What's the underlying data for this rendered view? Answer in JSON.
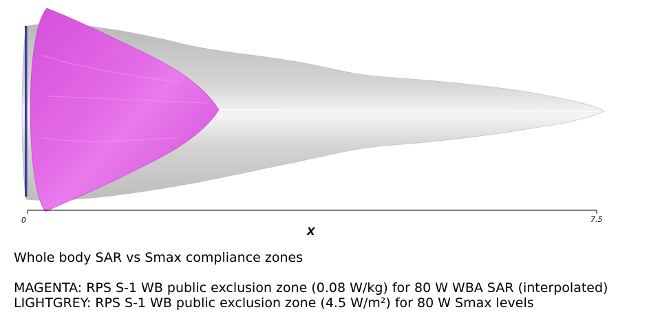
{
  "axis": {
    "x_title": "X",
    "tick_min": "0",
    "tick_max": "7.5"
  },
  "caption": {
    "title": "Whole body SAR vs Smax compliance zones",
    "magenta_line": "MAGENTA: RPS S-1 WB public exclusion zone (0.08 W/kg) for 80 W WBA SAR (interpolated)",
    "grey_line": "LIGHTGREY: RPS S-1 WB public exclusion zone (4.5 W/m²) for 80 W Smax levels"
  },
  "colors": {
    "magenta_zone": "#e05be6",
    "grey_zone": "#cfcfcf",
    "antenna": "#2a2f8a"
  }
}
